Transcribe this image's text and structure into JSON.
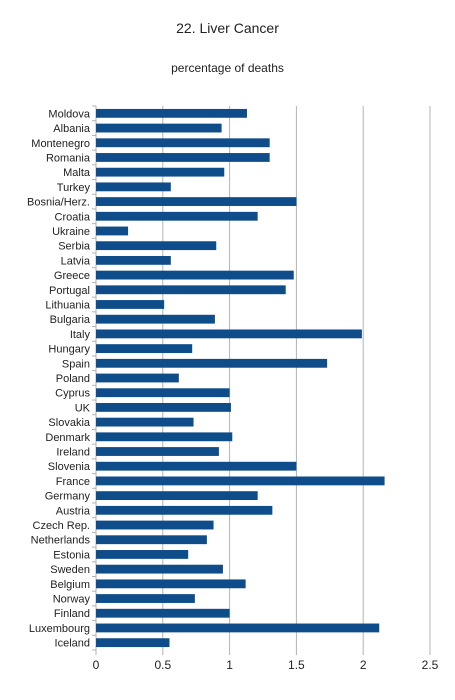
{
  "chart_data": {
    "type": "bar",
    "orientation": "horizontal",
    "title": "22. Liver Cancer",
    "subtitle": "percentage of deaths",
    "xlabel": "",
    "ylabel": "",
    "xlim": [
      0,
      2.5
    ],
    "x_ticks": [
      "0",
      "0.5",
      "1",
      "1.5",
      "2",
      "2.5"
    ],
    "grid": "vertical",
    "legend": "none",
    "bar_color": "#0f4c8a",
    "grid_color": "#b3b3b3",
    "categories": [
      "Moldova",
      "Albania",
      "Montenegro",
      "Romania",
      "Malta",
      "Turkey",
      "Bosnia/Herz.",
      "Croatia",
      "Ukraine",
      "Serbia",
      "Latvia",
      "Greece",
      "Portugal",
      "Lithuania",
      "Bulgaria",
      "Italy",
      "Hungary",
      "Spain",
      "Poland",
      "Cyprus",
      "UK",
      "Slovakia",
      "Denmark",
      "Ireland",
      "Slovenia",
      "France",
      "Germany",
      "Austria",
      "Czech Rep.",
      "Netherlands",
      "Estonia",
      "Sweden",
      "Belgium",
      "Norway",
      "Finland",
      "Luxembourg",
      "Iceland"
    ],
    "values": [
      1.13,
      0.94,
      1.3,
      1.3,
      0.96,
      0.56,
      1.5,
      1.21,
      0.24,
      0.9,
      0.56,
      1.48,
      1.42,
      0.51,
      0.89,
      1.99,
      0.72,
      1.73,
      0.62,
      1.0,
      1.01,
      0.73,
      1.02,
      0.92,
      1.5,
      2.16,
      1.21,
      1.32,
      0.88,
      0.83,
      0.69,
      0.95,
      1.12,
      0.74,
      1.0,
      2.12,
      0.55
    ]
  }
}
